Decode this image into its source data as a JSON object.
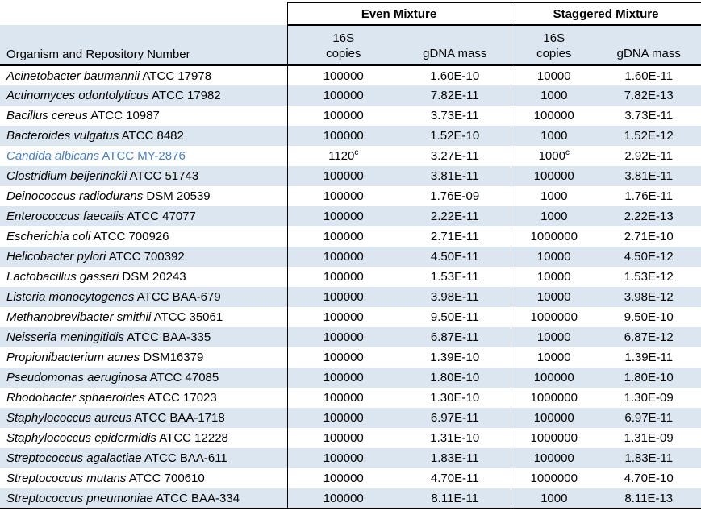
{
  "table": {
    "groups": [
      "Even Mixture",
      "Staggered Mixture"
    ],
    "organism_header": "Organism and Repository Number",
    "subheader": {
      "copies_line1": "16S",
      "copies_line2": "copies",
      "gdna": "gDNA mass"
    },
    "colors": {
      "band": "#DCE6F1",
      "border": "#000000",
      "candida_text": "#4A7EBB"
    },
    "rows": [
      {
        "name": "Acinetobacter baumannii",
        "strain": "ATCC 17978",
        "even_copies": "100000",
        "even_mass": "1.60E-10",
        "stag_copies": "10000",
        "stag_mass": "1.60E-11"
      },
      {
        "name": "Actinomyces odontolyticus",
        "strain": "ATCC 17982",
        "even_copies": "100000",
        "even_mass": "7.82E-11",
        "stag_copies": "1000",
        "stag_mass": "7.82E-13"
      },
      {
        "name": "Bacillus cereus",
        "strain": "ATCC 10987",
        "even_copies": "100000",
        "even_mass": "3.73E-11",
        "stag_copies": "100000",
        "stag_mass": "3.73E-11"
      },
      {
        "name": "Bacteroides vulgatus",
        "strain": "ATCC 8482",
        "even_copies": "100000",
        "even_mass": "1.52E-10",
        "stag_copies": "1000",
        "stag_mass": "1.52E-12"
      },
      {
        "name": "Candida albicans",
        "strain": "ATCC MY-2876",
        "even_copies": "1120",
        "even_copies_sup": "c",
        "even_mass": "3.27E-11",
        "stag_copies": "1000",
        "stag_copies_sup": "c",
        "stag_mass": "2.92E-11",
        "text_color": "#4A7EBB"
      },
      {
        "name": "Clostridium beijerinckii",
        "strain": "ATCC 51743",
        "even_copies": "100000",
        "even_mass": "3.81E-11",
        "stag_copies": "100000",
        "stag_mass": "3.81E-11"
      },
      {
        "name": "Deinococcus radiodurans",
        "strain": "DSM 20539",
        "even_copies": "100000",
        "even_mass": "1.76E-09",
        "stag_copies": "1000",
        "stag_mass": "1.76E-11"
      },
      {
        "name": "Enterococcus faecalis",
        "strain": "ATCC 47077",
        "even_copies": "100000",
        "even_mass": "2.22E-11",
        "stag_copies": "1000",
        "stag_mass": "2.22E-13"
      },
      {
        "name": "Escherichia coli",
        "strain": "ATCC 700926",
        "even_copies": "100000",
        "even_mass": "2.71E-11",
        "stag_copies": "1000000",
        "stag_mass": "2.71E-10"
      },
      {
        "name": "Helicobacter pylori",
        "strain": "ATCC 700392",
        "even_copies": "100000",
        "even_mass": "4.50E-11",
        "stag_copies": "10000",
        "stag_mass": "4.50E-12"
      },
      {
        "name": "Lactobacillus gasseri",
        "strain": "DSM 20243",
        "even_copies": "100000",
        "even_mass": "1.53E-11",
        "stag_copies": "10000",
        "stag_mass": "1.53E-12"
      },
      {
        "name": "Listeria monocytogenes",
        "strain": "ATCC BAA-679",
        "even_copies": "100000",
        "even_mass": "3.98E-11",
        "stag_copies": "10000",
        "stag_mass": "3.98E-12"
      },
      {
        "name": "Methanobrevibacter smithii",
        "strain": "ATCC 35061",
        "even_copies": "100000",
        "even_mass": "9.50E-11",
        "stag_copies": "1000000",
        "stag_mass": "9.50E-10"
      },
      {
        "name": "Neisseria meningitidis",
        "strain": "ATCC BAA-335",
        "even_copies": "100000",
        "even_mass": "6.87E-11",
        "stag_copies": "10000",
        "stag_mass": "6.87E-12"
      },
      {
        "name": "Propionibacterium acnes",
        "strain": "DSM16379",
        "even_copies": "100000",
        "even_mass": "1.39E-10",
        "stag_copies": "10000",
        "stag_mass": "1.39E-11"
      },
      {
        "name": "Pseudomonas aeruginosa",
        "strain": "ATCC 47085",
        "even_copies": "100000",
        "even_mass": "1.80E-10",
        "stag_copies": "100000",
        "stag_mass": "1.80E-10"
      },
      {
        "name": "Rhodobacter sphaeroides",
        "strain": "ATCC 17023",
        "even_copies": "100000",
        "even_mass": "1.30E-10",
        "stag_copies": "1000000",
        "stag_mass": "1.30E-09"
      },
      {
        "name": "Staphylococcus aureus",
        "strain": "ATCC BAA-1718",
        "even_copies": "100000",
        "even_mass": "6.97E-11",
        "stag_copies": "100000",
        "stag_mass": "6.97E-11"
      },
      {
        "name": "Staphylococcus epidermidis",
        "strain": "ATCC 12228",
        "even_copies": "100000",
        "even_mass": "1.31E-10",
        "stag_copies": "1000000",
        "stag_mass": "1.31E-09"
      },
      {
        "name": "Streptococcus agalactiae",
        "strain": "ATCC BAA-611",
        "even_copies": "100000",
        "even_mass": "1.83E-11",
        "stag_copies": "100000",
        "stag_mass": "1.83E-11"
      },
      {
        "name": "Streptococcus mutans",
        "strain": "ATCC 700610",
        "even_copies": "100000",
        "even_mass": "4.70E-11",
        "stag_copies": "1000000",
        "stag_mass": "4.70E-10"
      },
      {
        "name": "Streptococcus pneumoniae",
        "strain": "ATCC BAA-334",
        "even_copies": "100000",
        "even_mass": "8.11E-11",
        "stag_copies": "1000",
        "stag_mass": "8.11E-13"
      }
    ]
  }
}
